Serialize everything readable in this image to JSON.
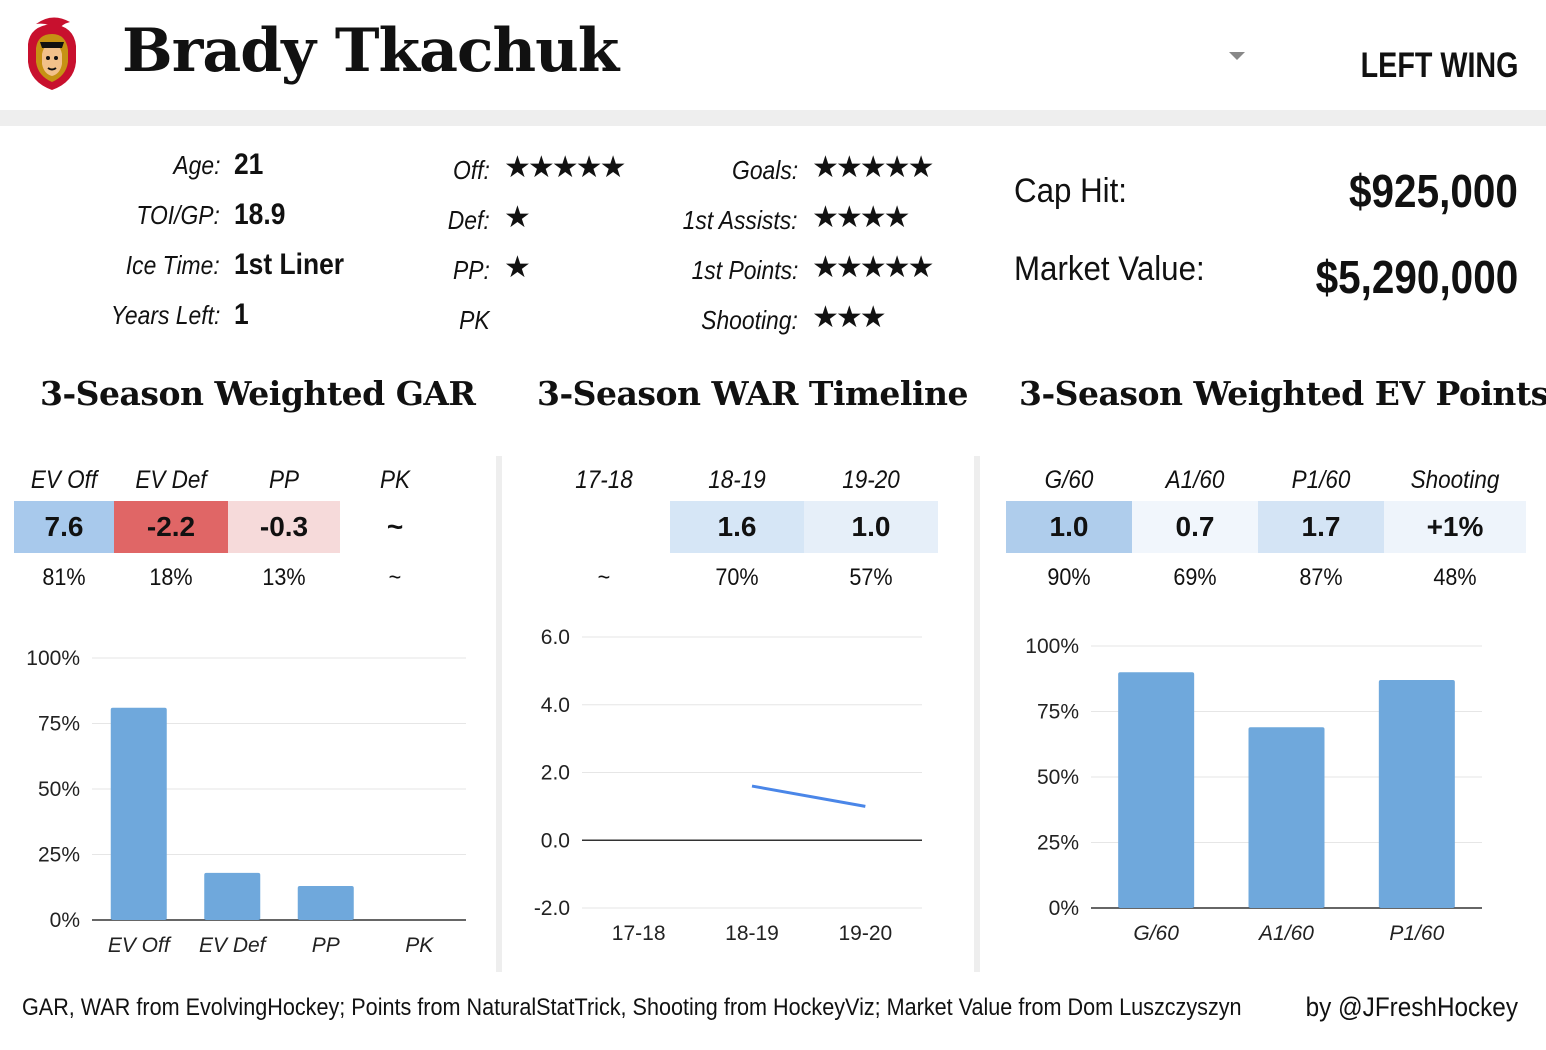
{
  "player": {
    "name": "Brady Tkachuk",
    "position": "LEFT WING"
  },
  "info": [
    {
      "label": "Age:",
      "value": "21"
    },
    {
      "label": "TOI/GP:",
      "value": "18.9"
    },
    {
      "label": "Ice Time:",
      "value": "1st Liner"
    },
    {
      "label": "Years Left:",
      "value": "1"
    }
  ],
  "ratings_left": [
    {
      "label": "Off:",
      "stars": 5,
      "glyphs": "★★★★★"
    },
    {
      "label": "Def:",
      "stars": 1,
      "glyphs": "★"
    },
    {
      "label": "PP:",
      "stars": 1,
      "glyphs": "★"
    },
    {
      "label": "PK",
      "stars": 0,
      "glyphs": ""
    }
  ],
  "ratings_right": [
    {
      "label": "Goals:",
      "stars": 5,
      "glyphs": "★★★★★"
    },
    {
      "label": "1st Assists:",
      "stars": 4,
      "glyphs": "★★★★"
    },
    {
      "label": "1st Points:",
      "stars": 5,
      "glyphs": "★★★★★"
    },
    {
      "label": "Shooting:",
      "stars": 3,
      "glyphs": "★★★"
    }
  ],
  "contract": {
    "cap_hit_label": "Cap Hit:",
    "cap_hit": "$925,000",
    "market_value_label": "Market Value:",
    "market_value": "$5,290,000"
  },
  "colors": {
    "bar": "#6fa8dc",
    "line": "#4a86e8",
    "header_band": "#eeeeee",
    "strong_red": "#e06666"
  },
  "gar": {
    "title": "3-Season Weighted GAR",
    "columns": [
      {
        "head": "EV Off",
        "value": "7.6",
        "pct": "81%",
        "bg": "#a8c9ec"
      },
      {
        "head": "EV Def",
        "value": "-2.2",
        "pct": "18%",
        "bg": "#e06666"
      },
      {
        "head": "PP",
        "value": "-0.3",
        "pct": "13%",
        "bg": "#f6dada"
      },
      {
        "head": "PK",
        "value": "~",
        "pct": "~",
        "bg": "#ffffff"
      }
    ]
  },
  "war": {
    "title": "3-Season WAR Timeline",
    "columns": [
      {
        "head": "17-18",
        "value": "",
        "pct": "~",
        "bg": "#ffffff"
      },
      {
        "head": "18-19",
        "value": "1.6",
        "pct": "70%",
        "bg": "#d6e6f6"
      },
      {
        "head": "19-20",
        "value": "1.0",
        "pct": "57%",
        "bg": "#e6eff9"
      }
    ]
  },
  "ev": {
    "title": "3-Season Weighted EV Points",
    "columns": [
      {
        "head": "G/60",
        "value": "1.0",
        "pct": "90%",
        "bg": "#afcdec"
      },
      {
        "head": "A1/60",
        "value": "0.7",
        "pct": "69%",
        "bg": "#f1f6fc"
      },
      {
        "head": "P1/60",
        "value": "1.7",
        "pct": "87%",
        "bg": "#d4e4f5"
      },
      {
        "head": "Shooting",
        "value": "+1%",
        "pct": "48%",
        "bg": "#eef4fb"
      }
    ]
  },
  "chart_data": [
    {
      "type": "bar",
      "categories": [
        "EV Off",
        "EV Def",
        "PP",
        "PK"
      ],
      "values": [
        81,
        18,
        13,
        0
      ],
      "ylim": [
        0,
        100
      ],
      "yticks": [
        "0%",
        "25%",
        "50%",
        "75%",
        "100%"
      ],
      "grid": true
    },
    {
      "type": "line",
      "x": [
        "17-18",
        "18-19",
        "19-20"
      ],
      "values": [
        null,
        1.6,
        1.0
      ],
      "ylim": [
        -2,
        6
      ],
      "yticks": [
        "-2.0",
        "0.0",
        "2.0",
        "4.0",
        "6.0"
      ],
      "grid": true
    },
    {
      "type": "bar",
      "categories": [
        "G/60",
        "A1/60",
        "P1/60"
      ],
      "values": [
        90,
        69,
        87
      ],
      "ylim": [
        0,
        100
      ],
      "yticks": [
        "0%",
        "25%",
        "50%",
        "75%",
        "100%"
      ],
      "grid": true
    }
  ],
  "footer": {
    "credit": "GAR, WAR from EvolvingHockey; Points from NaturalStatTrick, Shooting from HockeyViz; Market Value from Dom Luszczyszyn",
    "byline": "by @JFreshHockey"
  }
}
